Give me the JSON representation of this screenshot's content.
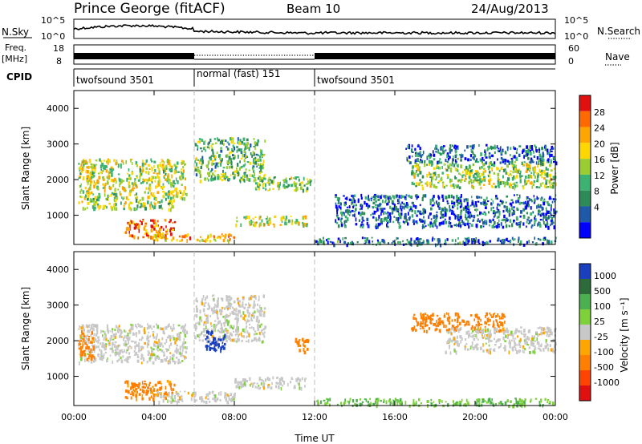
{
  "header": {
    "station": "Prince George (fitACF)",
    "beam": "Beam 10",
    "date": "24/Aug/2013"
  },
  "top_panels": {
    "nsky_label": "N.Sky",
    "nsky_ticks": [
      "10^5",
      "10^0"
    ],
    "nsearch_label": "N.Search",
    "nsearch_ticks": [
      "10^5",
      "10^0"
    ],
    "freq_label": "Freq.",
    "freq_unit": "[MHz]",
    "freq_ticks": [
      "18",
      "8"
    ],
    "nave_label": "Nave",
    "nave_ticks": [
      "60",
      "0"
    ],
    "cpid_label": "CPID",
    "cpid_segments": [
      {
        "label": "twofsound 3501",
        "start_hour": 0,
        "end_hour": 6
      },
      {
        "label": "normal (fast) 151",
        "start_hour": 6,
        "end_hour": 12
      },
      {
        "label": "twofsound 3501",
        "start_hour": 12,
        "end_hour": 24
      }
    ]
  },
  "axes": {
    "xlabel": "Time UT",
    "x_ticks": [
      "00:00",
      "04:00",
      "08:00",
      "12:00",
      "16:00",
      "20:00",
      "00:00"
    ],
    "ylabel": "Slant Range [km]",
    "y_ticks": [
      "4000",
      "3000",
      "2000",
      "1000"
    ]
  },
  "chart_data": [
    {
      "type": "heatmap",
      "title": "",
      "xlabel": "",
      "ylabel": "Slant Range [km]",
      "xlim": [
        0,
        24
      ],
      "ylim": [
        180,
        4500
      ],
      "colorbar": {
        "label": "Power [dB]",
        "ticks": [
          "28",
          "24",
          "20",
          "16",
          "12",
          "8",
          "4"
        ],
        "colors": [
          "#e01010",
          "#ff6a00",
          "#ffa500",
          "#ffd700",
          "#9acd32",
          "#3cb371",
          "#2e8b57",
          "#1e5aa8",
          "#0000ff"
        ]
      },
      "scatter_regions": [
        {
          "t0": 0.2,
          "t1": 5.6,
          "r0": 1500,
          "r1": 2600,
          "level": 0.55
        },
        {
          "t0": 0.2,
          "t1": 5.0,
          "r0": 1200,
          "r1": 1500,
          "level": 0.5
        },
        {
          "t0": 2.5,
          "t1": 5.0,
          "r0": 400,
          "r1": 900,
          "level": 0.85
        },
        {
          "t0": 4.0,
          "t1": 8.0,
          "r0": 300,
          "r1": 500,
          "level": 0.7
        },
        {
          "t0": 6.0,
          "t1": 9.5,
          "r0": 2000,
          "r1": 3200,
          "level": 0.4
        },
        {
          "t0": 8.0,
          "t1": 11.6,
          "r0": 750,
          "r1": 1000,
          "level": 0.55
        },
        {
          "t0": 9.0,
          "t1": 11.8,
          "r0": 1700,
          "r1": 2100,
          "level": 0.45
        },
        {
          "t0": 12.0,
          "t1": 24,
          "r0": 200,
          "r1": 400,
          "level": 0.2
        },
        {
          "t0": 13.0,
          "t1": 24,
          "r0": 700,
          "r1": 1600,
          "level": 0.15
        },
        {
          "t0": 16.8,
          "t1": 24,
          "r0": 1800,
          "r1": 2500,
          "level": 0.5
        },
        {
          "t0": 16.5,
          "t1": 24,
          "r0": 2500,
          "r1": 3000,
          "level": 0.2
        }
      ]
    },
    {
      "type": "heatmap",
      "title": "",
      "xlabel": "Time UT",
      "ylabel": "Slant Range [km]",
      "xlim": [
        0,
        24
      ],
      "ylim": [
        180,
        4500
      ],
      "colorbar": {
        "label": "Velocity [m s⁻¹]",
        "ticks": [
          "1000",
          "500",
          "100",
          "25",
          "-25",
          "-100",
          "-500",
          "-1000"
        ],
        "colors": [
          "#1a3fbf",
          "#2e6b3a",
          "#4caf50",
          "#7fd13b",
          "#c8c8c8",
          "#ffa500",
          "#ff7f00",
          "#ff4500",
          "#e01010"
        ]
      },
      "scatter_regions": [
        {
          "t0": 0.2,
          "t1": 5.6,
          "r0": 1400,
          "r1": 2500,
          "vel": 0
        },
        {
          "t0": 0.2,
          "t1": 1.0,
          "r0": 1500,
          "r1": 2300,
          "vel": -200
        },
        {
          "t0": 2.5,
          "t1": 5.0,
          "r0": 400,
          "r1": 900,
          "vel": -120
        },
        {
          "t0": 4.0,
          "t1": 8.0,
          "r0": 300,
          "r1": 600,
          "vel": 0
        },
        {
          "t0": 6.0,
          "t1": 9.5,
          "r0": 2000,
          "r1": 3300,
          "vel": 0
        },
        {
          "t0": 6.5,
          "t1": 7.5,
          "r0": 1700,
          "r1": 2300,
          "vel": 800
        },
        {
          "t0": 8.0,
          "t1": 11.6,
          "r0": 700,
          "r1": 1000,
          "vel": 0
        },
        {
          "t0": 11.0,
          "t1": 11.7,
          "r0": 1700,
          "r1": 2100,
          "vel": -250
        },
        {
          "t0": 12.0,
          "t1": 24,
          "r0": 200,
          "r1": 400,
          "vel": 60
        },
        {
          "t0": 16.8,
          "t1": 21.5,
          "r0": 2300,
          "r1": 2800,
          "vel": -200
        },
        {
          "t0": 18.5,
          "t1": 24,
          "r0": 1700,
          "r1": 2400,
          "vel": 0
        }
      ]
    }
  ]
}
